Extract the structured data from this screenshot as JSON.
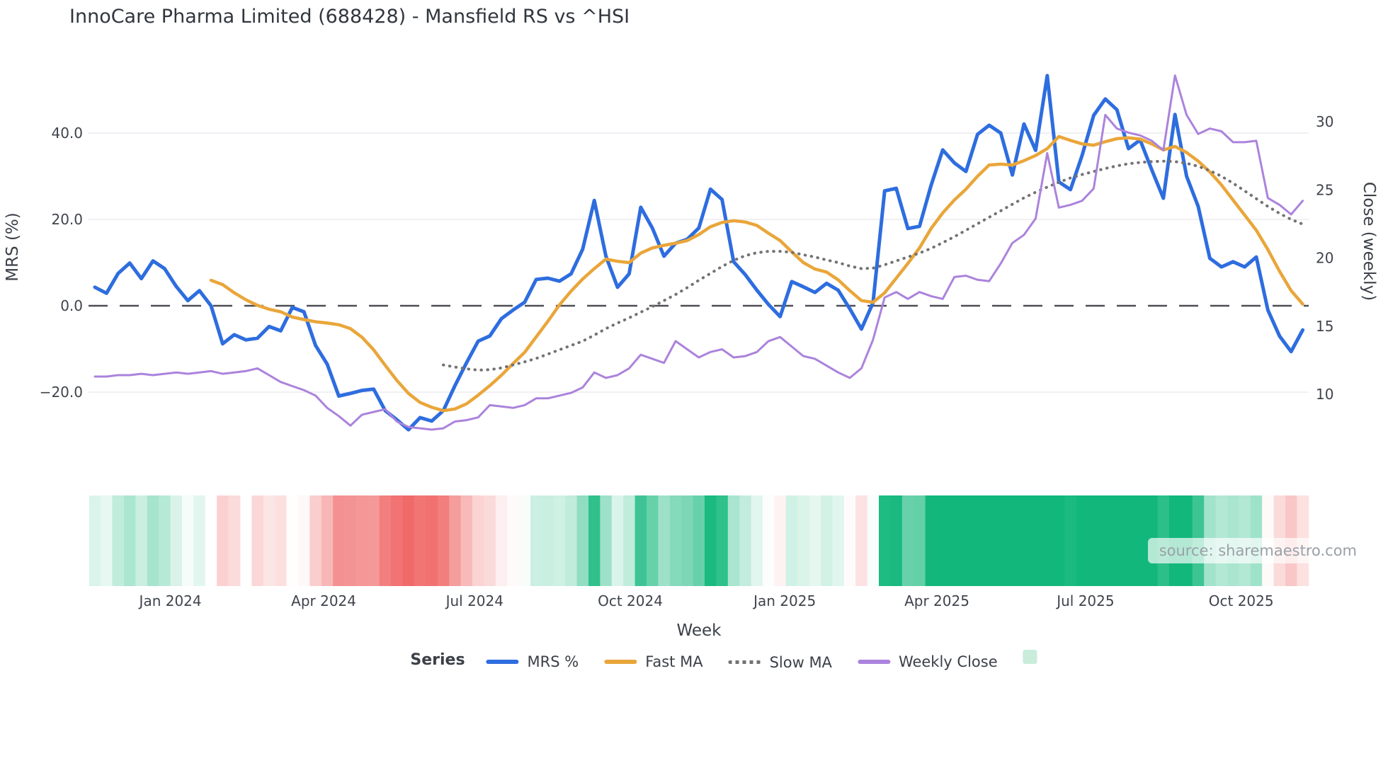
{
  "header": {
    "title": "InnoCare Pharma Limited (688428) - Mansfield RS vs ^HSI"
  },
  "source": {
    "label": "source: sharemaestro.com"
  },
  "chart_data": {
    "type": "line",
    "title": "InnoCare Pharma Limited (688428) - Mansfield RS vs ^HSI",
    "xlabel": "Week",
    "ylabel_left": "MRS (%)",
    "ylabel_right": "Close (weekly)",
    "legend_title": "Series",
    "grid": true,
    "zero_line": true,
    "x_tick_labels": [
      "Jan 2024",
      "Apr 2024",
      "Jul 2024",
      "Oct 2024",
      "Jan 2025",
      "Apr 2025",
      "Jul 2025",
      "Oct 2025"
    ],
    "x_tick_weeks": [
      6.5,
      19.7,
      32.7,
      46.1,
      59.4,
      72.5,
      85.3,
      98.7
    ],
    "left_ticks": {
      "values": [
        40,
        20,
        0,
        -20
      ],
      "labels": [
        "40.0",
        "20.0",
        "0.0",
        "−20.0"
      ]
    },
    "right_ticks": {
      "values": [
        30,
        25,
        20,
        15,
        10
      ],
      "labels": [
        "30",
        "25",
        "20",
        "15",
        "10"
      ]
    },
    "ylim_left": [
      -32,
      58
    ],
    "ylim_right": [
      4.5,
      34.5
    ],
    "weeks_total": 105,
    "colors": {
      "grid": "#ebebf2",
      "zero_line": "#4d4d55",
      "tick_text": "#3f444c",
      "heat_positive": "#12b77b",
      "heat_negative": "#f06a6a",
      "legend_square": "#c9ecdb"
    },
    "heatmap": {
      "encodes": "MRS %",
      "missing_weeks": [
        13
      ],
      "pos_color": "#12b77b",
      "neg_color": "#f06a6a",
      "max_abs": 28
    },
    "series": [
      {
        "name": "MRS %",
        "slug": "mrs",
        "axis": "left",
        "color": "#2e6ddf",
        "width": 5,
        "dash": "",
        "start_week": 0,
        "values": [
          4.3,
          2.9,
          7.5,
          9.9,
          6.3,
          10.4,
          8.6,
          4.5,
          1.2,
          3.5,
          0.0,
          -8.8,
          -6.7,
          -7.9,
          -7.5,
          -4.8,
          -5.8,
          -0.4,
          -1.4,
          -9.2,
          -13.5,
          -20.9,
          -20.3,
          -19.6,
          -19.3,
          -24.3,
          -26.4,
          -28.7,
          -25.9,
          -26.7,
          -24.3,
          -18.5,
          -13.2,
          -8.2,
          -7.0,
          -3.0,
          -1.0,
          0.8,
          6.1,
          6.4,
          5.7,
          7.4,
          13.1,
          24.4,
          11.5,
          4.3,
          7.4,
          22.8,
          18.0,
          11.5,
          14.5,
          15.4,
          18.0,
          27.0,
          24.6,
          10.2,
          7.2,
          3.6,
          0.3,
          -2.5,
          5.6,
          4.4,
          3.1,
          5.2,
          3.6,
          -0.7,
          -5.4,
          0.7,
          26.6,
          27.2,
          17.9,
          18.4,
          27.9,
          36.1,
          33.1,
          31.1,
          39.7,
          41.8,
          40.0,
          30.3,
          42.1,
          36.0,
          53.3,
          28.7,
          26.9,
          34.8,
          44.1,
          47.9,
          45.4,
          36.4,
          38.4,
          31.5,
          24.9,
          44.3,
          30.0,
          23.0,
          11.0,
          9.0,
          10.2,
          9.0,
          11.3,
          -1.0,
          -7.0,
          -10.6,
          -5.6
        ]
      },
      {
        "name": "Fast MA",
        "slug": "fast-ma",
        "axis": "left",
        "color": "#e9a63a",
        "width": 4.5,
        "dash": "",
        "start_week": 10,
        "values": [
          5.9,
          4.9,
          3.0,
          1.4,
          0.1,
          -0.8,
          -1.4,
          -2.6,
          -3.2,
          -3.7,
          -4.0,
          -4.4,
          -5.3,
          -7.3,
          -10.2,
          -13.8,
          -17.3,
          -20.3,
          -22.4,
          -23.5,
          -24.3,
          -23.9,
          -22.7,
          -20.7,
          -18.5,
          -16.1,
          -13.4,
          -10.8,
          -7.2,
          -3.6,
          0.2,
          3.4,
          6.2,
          8.6,
          10.8,
          10.3,
          10.0,
          12.2,
          13.4,
          14.0,
          14.5,
          15.1,
          16.5,
          18.3,
          19.3,
          19.7,
          19.4,
          18.6,
          16.8,
          15.1,
          12.5,
          10.0,
          8.5,
          7.8,
          6.0,
          3.5,
          1.2,
          0.8,
          3.0,
          6.4,
          9.8,
          13.4,
          17.9,
          21.5,
          24.5,
          27.0,
          30.0,
          32.6,
          32.8,
          32.6,
          33.6,
          34.8,
          36.4,
          39.2,
          38.3,
          37.5,
          37.2,
          38.0,
          38.7,
          38.9,
          38.6,
          37.5,
          36.1,
          36.9,
          35.5,
          33.5,
          31.0,
          28.0,
          24.5,
          21.0,
          17.5,
          13.0,
          8.0,
          3.5,
          0.4
        ]
      },
      {
        "name": "Slow MA",
        "slug": "slow-ma",
        "axis": "left",
        "color": "#737373",
        "width": 4,
        "dash": "0.5 8.5",
        "start_week": 30,
        "values": [
          -13.7,
          -14.2,
          -14.6,
          -14.9,
          -14.8,
          -14.4,
          -13.7,
          -13.0,
          -12.2,
          -11.2,
          -10.2,
          -9.2,
          -8.2,
          -6.8,
          -5.3,
          -4.0,
          -2.8,
          -1.5,
          -0.2,
          1.2,
          2.6,
          4.2,
          5.9,
          7.5,
          9.1,
          10.5,
          11.6,
          12.3,
          12.6,
          12.6,
          12.4,
          11.8,
          11.3,
          10.6,
          10.0,
          9.2,
          8.6,
          8.7,
          9.5,
          10.4,
          11.3,
          12.2,
          13.3,
          14.6,
          16.0,
          17.5,
          19.0,
          20.5,
          22.0,
          23.5,
          25.0,
          26.3,
          27.5,
          28.6,
          29.6,
          30.4,
          31.1,
          31.8,
          32.4,
          32.9,
          33.2,
          33.4,
          33.5,
          33.4,
          33.0,
          32.3,
          31.3,
          30.0,
          28.4,
          26.6,
          24.8,
          23.0,
          21.4,
          20.0,
          18.9
        ]
      },
      {
        "name": "Weekly Close",
        "slug": "weekly-close",
        "axis": "right",
        "color": "#ab83dc",
        "width": 3,
        "dash": "",
        "start_week": 0,
        "values": [
          11.3,
          11.3,
          11.4,
          11.4,
          11.5,
          11.4,
          11.5,
          11.6,
          11.5,
          11.6,
          11.7,
          11.5,
          11.6,
          11.7,
          11.9,
          11.4,
          10.9,
          10.6,
          10.3,
          9.9,
          9.0,
          8.4,
          7.7,
          8.5,
          8.7,
          8.9,
          8.0,
          7.6,
          7.5,
          7.4,
          7.5,
          8.0,
          8.1,
          8.3,
          9.2,
          9.1,
          9.0,
          9.2,
          9.7,
          9.7,
          9.9,
          10.1,
          10.5,
          11.6,
          11.2,
          11.4,
          11.9,
          12.9,
          12.6,
          12.3,
          13.9,
          13.3,
          12.7,
          13.1,
          13.3,
          12.7,
          12.8,
          13.1,
          13.9,
          14.2,
          13.5,
          12.8,
          12.6,
          12.1,
          11.6,
          11.2,
          11.9,
          14.0,
          17.1,
          17.5,
          17.0,
          17.5,
          17.2,
          17.0,
          18.6,
          18.7,
          18.4,
          18.3,
          19.6,
          21.1,
          21.7,
          22.9,
          27.7,
          23.7,
          23.9,
          24.2,
          25.1,
          30.5,
          29.5,
          29.2,
          29.0,
          28.6,
          27.9,
          33.4,
          30.5,
          29.1,
          29.5,
          29.3,
          28.5,
          28.5,
          28.6,
          24.4,
          23.9,
          23.2,
          24.2
        ]
      }
    ]
  }
}
